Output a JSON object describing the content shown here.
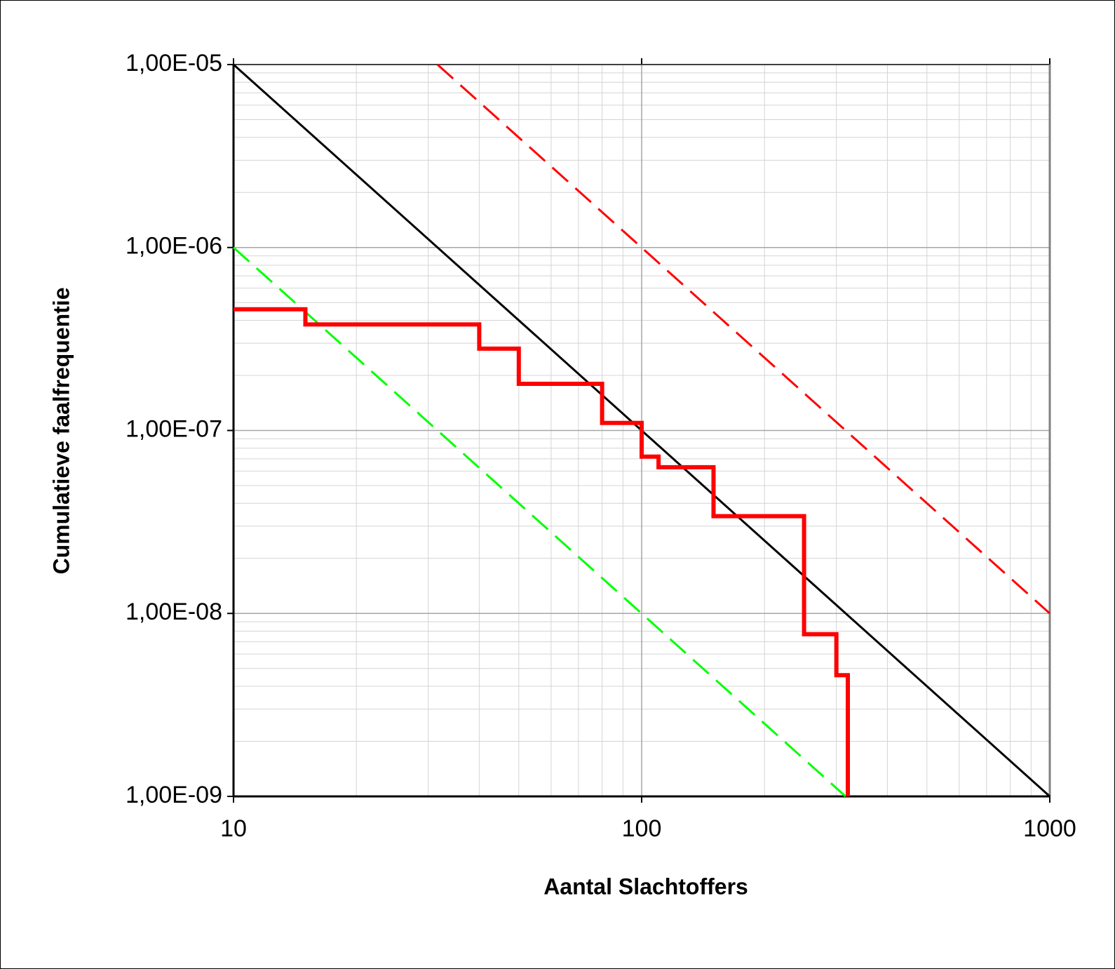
{
  "chart_data": {
    "type": "line",
    "x_label": "Aantal Slachtoffers",
    "y_label": "Cumulatieve faalfrequentie",
    "x_scale": "log",
    "y_scale": "log",
    "xlim": [
      10,
      1000
    ],
    "ylim": [
      1e-09,
      1e-05
    ],
    "xticks": [
      10,
      100,
      1000
    ],
    "yticks": [
      {
        "value": 1e-09,
        "label": "1,00E-09"
      },
      {
        "value": 1e-08,
        "label": "1,00E-08"
      },
      {
        "value": 1e-07,
        "label": "1,00E-07"
      },
      {
        "value": 1e-06,
        "label": "1,00E-06"
      },
      {
        "value": 1e-05,
        "label": "1,00E-05"
      }
    ],
    "grid": true,
    "minor_grid": true,
    "series": [
      {
        "color": "#00ff00",
        "style": "dashed",
        "width": 3,
        "x": [
          10,
          316
        ],
        "values": [
          1e-06,
          1e-09
        ]
      },
      {
        "color": "#ff0000",
        "style": "dashed",
        "width": 3,
        "x": [
          31.6,
          1000
        ],
        "values": [
          1e-05,
          1e-08
        ]
      },
      {
        "color": "#000000",
        "style": "solid",
        "width": 3,
        "x": [
          10,
          1000
        ],
        "values": [
          1e-05,
          1e-09
        ]
      },
      {
        "color": "#ff0000",
        "style": "solid",
        "width": 6,
        "x": [
          10,
          15,
          15,
          40,
          40,
          50,
          50,
          80,
          80,
          100,
          100,
          110,
          110,
          150,
          150,
          250,
          250,
          300,
          300,
          320,
          320
        ],
        "values": [
          4.6e-07,
          4.6e-07,
          3.8e-07,
          3.8e-07,
          2.8e-07,
          2.8e-07,
          1.8e-07,
          1.8e-07,
          1.1e-07,
          1.1e-07,
          7.2e-08,
          7.2e-08,
          6.3e-08,
          6.3e-08,
          3.4e-08,
          3.4e-08,
          7.7e-09,
          7.7e-09,
          4.6e-09,
          4.6e-09,
          1e-09
        ]
      }
    ]
  }
}
